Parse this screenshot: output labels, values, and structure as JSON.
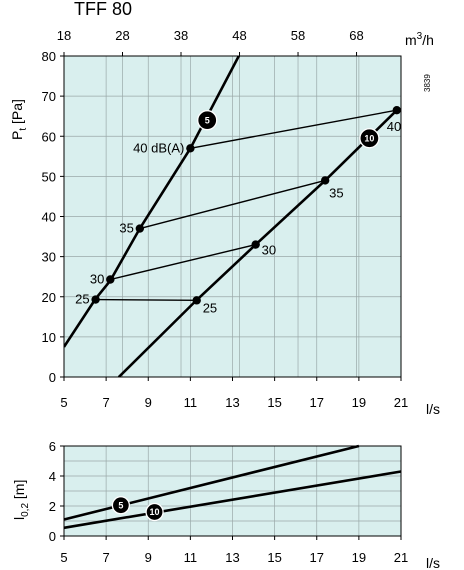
{
  "title": "TFF 80",
  "figure_id": "3839",
  "colors": {
    "plot_bg": "#d9efee",
    "grid": "#9aa8a8",
    "ink": "#000000"
  },
  "chart_data": [
    {
      "type": "line",
      "xlabel": "l/s",
      "ylabel": "Pt [Pa]",
      "xlim": [
        5,
        21
      ],
      "ylim": [
        0,
        80
      ],
      "x_ticks": [
        "5",
        "7",
        "9",
        "11",
        "13",
        "15",
        "17",
        "19",
        "21"
      ],
      "y_ticks": [
        "0",
        "10",
        "20",
        "30",
        "40",
        "50",
        "60",
        "70",
        "80"
      ],
      "secondary_x": {
        "label": "m3/h",
        "label_base": "m",
        "label_exp": "3",
        "label_suffix": "/h",
        "ticks": [
          18,
          28,
          38,
          48,
          58,
          68
        ],
        "tick_labels": [
          "18",
          "28",
          "38",
          "48",
          "58",
          "68"
        ]
      },
      "grid": true,
      "series": [
        {
          "name": "5",
          "points": [
            [
              5.0,
              7.5
            ],
            [
              6.5,
              19.5
            ],
            [
              7.2,
              24.0
            ],
            [
              8.6,
              37.0
            ],
            [
              11.0,
              57.0
            ],
            [
              13.3,
              80.0
            ]
          ],
          "badge_at": [
            11.8,
            64.0
          ]
        },
        {
          "name": "10",
          "points": [
            [
              7.6,
              0.0
            ],
            [
              11.3,
              19.2
            ],
            [
              14.1,
              33.0
            ],
            [
              17.4,
              49.0
            ],
            [
              20.8,
              66.5
            ]
          ],
          "badge_at": [
            19.5,
            59.5
          ]
        }
      ],
      "sound_lines": [
        {
          "label": "25",
          "from": [
            6.5,
            19.3
          ],
          "to": [
            11.3,
            19.1
          ]
        },
        {
          "label": "30",
          "from": [
            7.2,
            24.3
          ],
          "to": [
            14.1,
            33.0
          ]
        },
        {
          "label": "35",
          "from": [
            8.6,
            37.0
          ],
          "to": [
            17.4,
            49.0
          ]
        },
        {
          "label": "40 dB(A)",
          "from": [
            11.0,
            57.0
          ],
          "to": [
            20.8,
            66.5
          ]
        }
      ],
      "end_labels": [
        "25",
        "30",
        "35",
        "40"
      ],
      "start_labels": [
        "25",
        "30",
        "35",
        "40 dB(A)"
      ]
    },
    {
      "type": "line",
      "xlabel": "l/s",
      "ylabel": "l0,2 [m]",
      "ylabel_base": "l",
      "ylabel_sub": "0,2",
      "ylabel_unit": " [m]",
      "xlim": [
        5,
        21
      ],
      "ylim": [
        0,
        6
      ],
      "x_ticks": [
        "5",
        "7",
        "9",
        "11",
        "13",
        "15",
        "17",
        "19",
        "21"
      ],
      "y_ticks": [
        "0",
        "2",
        "4",
        "6"
      ],
      "grid": true,
      "series": [
        {
          "name": "5",
          "points": [
            [
              5.0,
              1.1
            ],
            [
              19.0,
              6.0
            ]
          ],
          "badge_at": [
            7.7,
            2.05
          ]
        },
        {
          "name": "10",
          "points": [
            [
              5.0,
              0.55
            ],
            [
              21.0,
              4.3
            ]
          ],
          "badge_at": [
            9.3,
            1.6
          ]
        }
      ]
    }
  ]
}
